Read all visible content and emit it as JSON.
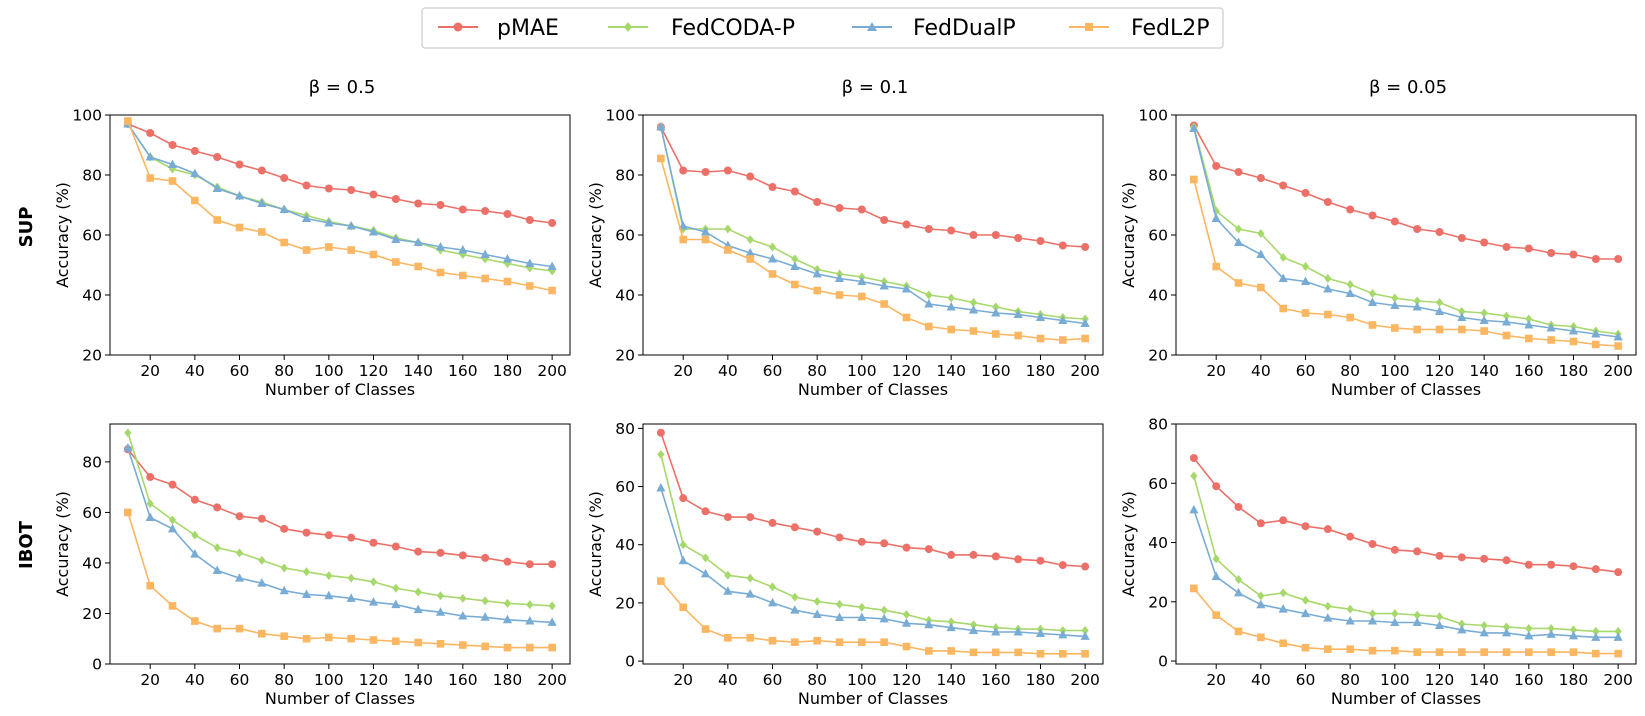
{
  "figure": {
    "legend": [
      {
        "name": "pMAE",
        "color": "#ec7068",
        "marker": "circle"
      },
      {
        "name": "FedCODA-P",
        "color": "#a7d86b",
        "marker": "diamond"
      },
      {
        "name": "FedDualP",
        "color": "#79acd4",
        "marker": "triangle"
      },
      {
        "name": "FedL2P",
        "color": "#fbb662",
        "marker": "square"
      }
    ],
    "column_titles": [
      "β = 0.5",
      "β = 0.1",
      "β = 0.05"
    ],
    "row_labels": [
      "SUP",
      "IBOT"
    ]
  },
  "chart_data": [
    {
      "type": "line",
      "row": "SUP",
      "title": "β = 0.5",
      "xlabel": "Number of Classes",
      "ylabel": "Accuracy (%)",
      "x": [
        10,
        20,
        30,
        40,
        50,
        60,
        70,
        80,
        90,
        100,
        110,
        120,
        130,
        140,
        150,
        160,
        170,
        180,
        190,
        200
      ],
      "xticks": [
        20,
        40,
        60,
        80,
        100,
        120,
        140,
        160,
        180,
        200
      ],
      "ylim": [
        20,
        100
      ],
      "yticks": [
        20,
        40,
        60,
        80,
        100
      ],
      "xlim": [
        2,
        208
      ],
      "series": [
        {
          "name": "pMAE",
          "values": [
            97,
            94,
            90,
            88,
            86,
            83.5,
            81.5,
            79,
            76.5,
            75.5,
            75,
            73.5,
            72,
            70.5,
            70,
            68.5,
            68,
            67,
            65,
            64
          ]
        },
        {
          "name": "FedCODA-P",
          "values": [
            97,
            86,
            82,
            80,
            76,
            73,
            71,
            68.5,
            66.5,
            64.5,
            63,
            61.5,
            59,
            57.5,
            55,
            53.5,
            52,
            50.5,
            49,
            48
          ]
        },
        {
          "name": "FedDualP",
          "values": [
            97,
            86,
            83.5,
            80.5,
            75.5,
            73,
            70.5,
            68.5,
            65.5,
            64,
            63,
            61,
            58.5,
            57.5,
            56,
            55,
            53.5,
            52,
            50.5,
            49.5
          ]
        },
        {
          "name": "FedL2P",
          "values": [
            98,
            79,
            78,
            71.5,
            65,
            62.5,
            61,
            57.5,
            55,
            56,
            55,
            53.5,
            51,
            49.5,
            47.5,
            46.5,
            45.5,
            44.5,
            43,
            41.5
          ]
        }
      ]
    },
    {
      "type": "line",
      "row": "SUP",
      "title": "β = 0.1",
      "xlabel": "Number of Classes",
      "ylabel": "Accuracy (%)",
      "x": [
        10,
        20,
        30,
        40,
        50,
        60,
        70,
        80,
        90,
        100,
        110,
        120,
        130,
        140,
        150,
        160,
        170,
        180,
        190,
        200
      ],
      "xticks": [
        20,
        40,
        60,
        80,
        100,
        120,
        140,
        160,
        180,
        200
      ],
      "ylim": [
        20,
        100
      ],
      "yticks": [
        20,
        40,
        60,
        80,
        100
      ],
      "xlim": [
        2,
        208
      ],
      "series": [
        {
          "name": "pMAE",
          "values": [
            96,
            81.5,
            81,
            81.5,
            79.5,
            76,
            74.5,
            71,
            69,
            68.5,
            65,
            63.5,
            62,
            61.5,
            60,
            60,
            59,
            58,
            56.5,
            56
          ]
        },
        {
          "name": "FedCODA-P",
          "values": [
            96,
            62,
            62,
            62,
            58.5,
            56,
            52,
            48.5,
            47,
            46,
            44.5,
            43,
            40,
            39,
            37.5,
            36,
            34.5,
            33.5,
            32.5,
            32
          ]
        },
        {
          "name": "FedDualP",
          "values": [
            96,
            63,
            61,
            56.5,
            54,
            52,
            49.5,
            47,
            45.5,
            44.5,
            43,
            42,
            37,
            36,
            35,
            34,
            33.5,
            32.5,
            31.5,
            30.5
          ]
        },
        {
          "name": "FedL2P",
          "values": [
            85.5,
            58.5,
            58.5,
            55,
            52,
            47,
            43.5,
            41.5,
            40,
            39.5,
            37,
            32.5,
            29.5,
            28.5,
            28,
            27,
            26.5,
            25.5,
            25,
            25.5
          ]
        }
      ]
    },
    {
      "type": "line",
      "row": "SUP",
      "title": "β = 0.05",
      "xlabel": "Number of Classes",
      "ylabel": "Accuracy (%)",
      "x": [
        10,
        20,
        30,
        40,
        50,
        60,
        70,
        80,
        90,
        100,
        110,
        120,
        130,
        140,
        150,
        160,
        170,
        180,
        190,
        200
      ],
      "xticks": [
        20,
        40,
        60,
        80,
        100,
        120,
        140,
        160,
        180,
        200
      ],
      "ylim": [
        20,
        100
      ],
      "yticks": [
        20,
        40,
        60,
        80,
        100
      ],
      "xlim": [
        2,
        208
      ],
      "series": [
        {
          "name": "pMAE",
          "values": [
            96.5,
            83,
            81,
            79,
            76.5,
            74,
            71,
            68.5,
            66.5,
            64.5,
            62,
            61,
            59,
            57.5,
            56,
            55.5,
            54,
            53.5,
            52,
            52
          ]
        },
        {
          "name": "FedCODA-P",
          "values": [
            96,
            68,
            62,
            60.5,
            52.5,
            49.5,
            45.5,
            43.5,
            40.5,
            39,
            38,
            37.5,
            34.5,
            34,
            33,
            32,
            30,
            29.5,
            28,
            27
          ]
        },
        {
          "name": "FedDualP",
          "values": [
            95.5,
            65.5,
            57.5,
            53.5,
            45.5,
            44.5,
            42,
            40.5,
            37.5,
            36.5,
            36,
            34.5,
            32.5,
            31.5,
            31,
            30,
            29,
            28,
            27,
            26
          ]
        },
        {
          "name": "FedL2P",
          "values": [
            78.5,
            49.5,
            44,
            42.5,
            35.5,
            34,
            33.5,
            32.5,
            30,
            29,
            28.5,
            28.5,
            28.5,
            28,
            26.5,
            25.5,
            25,
            24.5,
            23.5,
            23
          ]
        }
      ]
    },
    {
      "type": "line",
      "row": "IBOT",
      "title": "β = 0.5",
      "xlabel": "Number of Classes",
      "ylabel": "Accuracy (%)",
      "x": [
        10,
        20,
        30,
        40,
        50,
        60,
        70,
        80,
        90,
        100,
        110,
        120,
        130,
        140,
        150,
        160,
        170,
        180,
        190,
        200
      ],
      "xticks": [
        20,
        40,
        60,
        80,
        100,
        120,
        140,
        160,
        180,
        200
      ],
      "ylim": [
        0,
        95
      ],
      "yticks": [
        0,
        20,
        40,
        60,
        80
      ],
      "xlim": [
        2,
        208
      ],
      "series": [
        {
          "name": "pMAE",
          "values": [
            85,
            74,
            71,
            65,
            62,
            58.5,
            57.5,
            53.5,
            52,
            51,
            50,
            48,
            46.5,
            44.5,
            44,
            43,
            42,
            40.5,
            39.5,
            39.5
          ]
        },
        {
          "name": "FedCODA-P",
          "values": [
            91.5,
            63.5,
            57,
            51,
            46,
            44,
            41,
            38,
            36.5,
            35,
            34,
            32.5,
            30,
            28.5,
            27,
            26,
            25,
            24,
            23.5,
            23
          ]
        },
        {
          "name": "FedDualP",
          "values": [
            85.5,
            58,
            53.5,
            43.5,
            37,
            34,
            32,
            29,
            27.5,
            27,
            26,
            24.5,
            23.5,
            21.5,
            20.5,
            19,
            18.5,
            17.5,
            17,
            16.5
          ]
        },
        {
          "name": "FedL2P",
          "values": [
            60,
            31,
            23,
            17,
            14,
            14,
            12,
            11,
            10,
            10.5,
            10,
            9.5,
            9,
            8.5,
            8,
            7.5,
            7,
            6.5,
            6.5,
            6.5
          ]
        }
      ]
    },
    {
      "type": "line",
      "row": "IBOT",
      "title": "β = 0.1",
      "xlabel": "Number of Classes",
      "ylabel": "Accuracy (%)",
      "x": [
        10,
        20,
        30,
        40,
        50,
        60,
        70,
        80,
        90,
        100,
        110,
        120,
        130,
        140,
        150,
        160,
        170,
        180,
        190,
        200
      ],
      "xticks": [
        20,
        40,
        60,
        80,
        100,
        120,
        140,
        160,
        180,
        200
      ],
      "ylim": [
        -1,
        81.5
      ],
      "yticks": [
        0,
        20,
        40,
        60,
        80
      ],
      "xlim": [
        2,
        208
      ],
      "series": [
        {
          "name": "pMAE",
          "values": [
            78.5,
            56,
            51.5,
            49.5,
            49.5,
            47.5,
            46,
            44.5,
            42.5,
            41,
            40.5,
            39,
            38.5,
            36.5,
            36.5,
            36,
            35,
            34.5,
            33,
            32.5
          ]
        },
        {
          "name": "FedCODA-P",
          "values": [
            71,
            40,
            35.5,
            29.5,
            28.5,
            25.5,
            22,
            20.5,
            19.5,
            18.5,
            17.5,
            16,
            14,
            13.5,
            12.5,
            11.5,
            11,
            11,
            10.5,
            10.5
          ]
        },
        {
          "name": "FedDualP",
          "values": [
            59.5,
            34.5,
            30,
            24,
            23,
            20,
            17.5,
            16,
            15,
            15,
            14.5,
            13,
            12.5,
            11.5,
            10.5,
            10,
            10,
            9.5,
            9,
            8.5
          ]
        },
        {
          "name": "FedL2P",
          "values": [
            27.5,
            18.5,
            11,
            8,
            8,
            7,
            6.5,
            7,
            6.5,
            6.5,
            6.5,
            5,
            3.5,
            3.5,
            3,
            3,
            3,
            2.5,
            2.5,
            2.5
          ]
        }
      ]
    },
    {
      "type": "line",
      "row": "IBOT",
      "title": "β = 0.05",
      "xlabel": "Number of Classes",
      "ylabel": "Accuracy (%)",
      "x": [
        10,
        20,
        30,
        40,
        50,
        60,
        70,
        80,
        90,
        100,
        110,
        120,
        130,
        140,
        150,
        160,
        170,
        180,
        190,
        200
      ],
      "xticks": [
        20,
        40,
        60,
        80,
        100,
        120,
        140,
        160,
        180,
        200
      ],
      "ylim": [
        -1,
        80
      ],
      "yticks": [
        0,
        20,
        40,
        60,
        80
      ],
      "xlim": [
        2,
        208
      ],
      "series": [
        {
          "name": "pMAE",
          "values": [
            68.5,
            59,
            52,
            46.5,
            47.5,
            45.5,
            44.5,
            42,
            39.5,
            37.5,
            37,
            35.5,
            35,
            34.5,
            34,
            32.5,
            32.5,
            32,
            31,
            30
          ]
        },
        {
          "name": "FedCODA-P",
          "values": [
            62.5,
            34.5,
            27.5,
            22,
            23,
            20.5,
            18.5,
            17.5,
            16,
            16,
            15.5,
            15,
            12.5,
            12,
            11.5,
            11,
            11,
            10.5,
            10,
            10
          ]
        },
        {
          "name": "FedDualP",
          "values": [
            51,
            28.5,
            23,
            19,
            17.5,
            16,
            14.5,
            13.5,
            13.5,
            13,
            13,
            12,
            10.5,
            9.5,
            9.5,
            8.5,
            9,
            8.5,
            8,
            8
          ]
        },
        {
          "name": "FedL2P",
          "values": [
            24.5,
            15.5,
            10,
            8,
            6,
            4.5,
            4,
            4,
            3.5,
            3.5,
            3,
            3,
            3,
            3,
            3,
            3,
            3,
            3,
            2.5,
            2.5
          ]
        }
      ]
    }
  ]
}
